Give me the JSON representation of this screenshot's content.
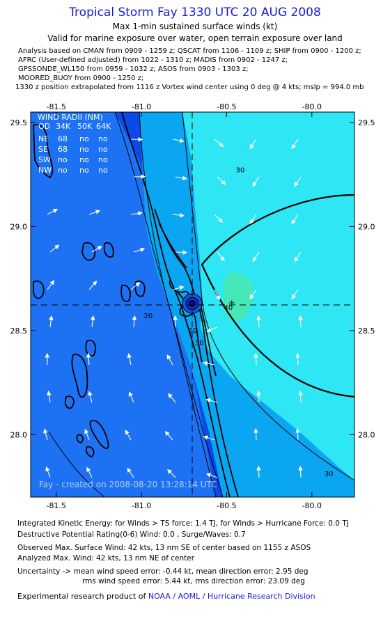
{
  "header": {
    "title": "Tropical Storm Fay 1330 UTC 20 AUG 2008",
    "subtitle1": "Max 1-min sustained surface winds (kt)",
    "subtitle2": "Valid for marine exposure over water, open terrain exposure over land",
    "analysis_lines": [
      "Analysis based on  CMAN from 0909 - 1259 z;  QSCAT from 1106 - 1109 z;  SHIP from 0900 - 1200 z;",
      "AFRC (User-defined adjusted) from 1022 - 1310 z;  MADIS from 0902 - 1247 z;",
      "GPSSONDE_WL150 from 0959 - 1032 z;  ASOS from 0903 - 1303 z;",
      "MOORED_BUOY from 0900 - 1250 z;",
      "1330 z position extrapolated from 1116 z Vortex wind center using 0 deg @ 4 kts; mslp = 994.0 mb"
    ]
  },
  "chart_data": {
    "type": "heatmap",
    "xlim": [
      -81.65,
      -79.75
    ],
    "ylim": [
      27.7,
      29.55
    ],
    "xticks": [
      "-81.5",
      "-81.0",
      "-80.5",
      "-80.0"
    ],
    "xtick_values": [
      -81.5,
      -81.0,
      -80.5,
      -80.0
    ],
    "yticks": [
      "29.5",
      "29.0",
      "28.5",
      "28.0"
    ],
    "ytick_values": [
      29.5,
      29.0,
      28.5,
      28.0
    ],
    "storm_center": {
      "lon": -80.67,
      "lat": 28.55
    },
    "contour_labels": [
      {
        "text": "30",
        "lon": -80.42,
        "lat": 29.26
      },
      {
        "text": "20",
        "lon": -80.96,
        "lat": 28.56
      },
      {
        "text": "20",
        "lon": -80.7,
        "lat": 28.49
      },
      {
        "text": "30",
        "lon": -80.66,
        "lat": 28.43
      },
      {
        "text": "40",
        "lon": -80.49,
        "lat": 28.6
      },
      {
        "text": "30",
        "lon": -79.9,
        "lat": 27.8
      }
    ],
    "max_wind_marker": {
      "text": "+",
      "lon": -80.47,
      "lat": 28.62
    },
    "wind_radii_table": {
      "title": "WIND RADII (NM)",
      "columns": [
        "QD",
        "34K",
        "50K",
        "64K"
      ],
      "rows": [
        [
          "NE",
          "68",
          "no",
          "no"
        ],
        [
          "SE",
          "68",
          "no",
          "no"
        ],
        [
          "SW",
          "no",
          "no",
          "no"
        ],
        [
          "NW",
          "no",
          "no",
          "no"
        ]
      ]
    },
    "credit": "Fay - created on 2008-08-20 13:28:14 UTC",
    "colors": {
      "land_dark": "#0a4ae8",
      "land_mid": "#1d72f4",
      "ocean_20_30": "#0aa6f2",
      "ocean_30_40": "#2ee6f4",
      "core_40": "#46e8b8",
      "arrow": "#ffffff",
      "coast": "#000000"
    }
  },
  "footer": {
    "ike_line": "Integrated Kinetic Energy:  for Winds > TS force: 1.4 TJ,  for Winds > Hurricane Force: 0.0 TJ",
    "dpr_line": "Destructive Potential Rating(0-6)   Wind: 0.0 , Surge/Waves: 0.7",
    "obs_line": "Observed Max. Surface Wind: 42 kts, 13 nm SE of center based on 1155 z ASOS",
    "analyzed_line": "Analyzed Max. Wind: 42 kts, 13 nm NE of center",
    "uncert_line1": "Uncertainty -> mean wind speed error:  -0.44 kt,   mean direction error: 2.95 deg",
    "uncert_line2": "rms wind speed error: 5.44 kt,   rms direction error: 23.09 deg",
    "product_prefix": "Experimental research product of ",
    "product_link": "NOAA / AOML / Hurricane Research Division"
  }
}
